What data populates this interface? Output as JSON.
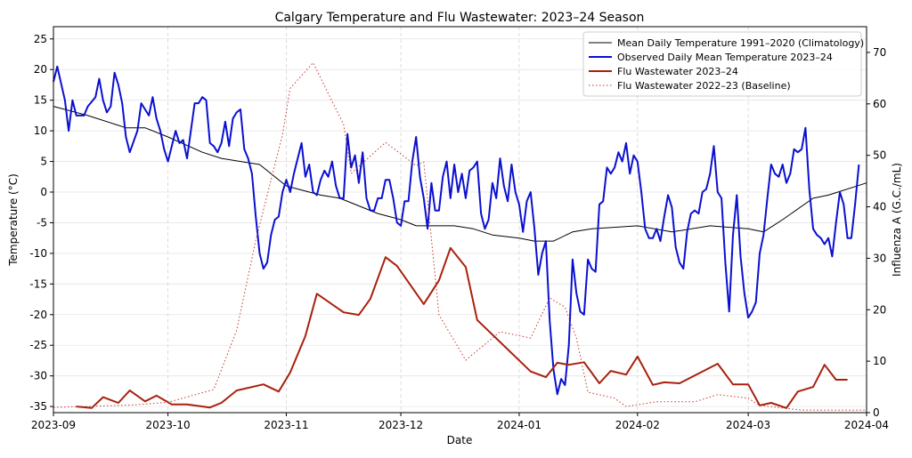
{
  "chart_data": {
    "type": "line",
    "title": "Calgary Temperature and Flu Wastewater: 2023–24 Season",
    "x_label": "Date",
    "y_label": "Temperature (°C)",
    "y2_label": "Influenza A (G.C./mL)",
    "xlim": [
      "2023-09-01",
      "2024-04-01"
    ],
    "xticks": [
      {
        "value": "2023-09-01",
        "label": "2023-09"
      },
      {
        "value": "2023-10-01",
        "label": "2023-10"
      },
      {
        "value": "2023-11-01",
        "label": "2023-11"
      },
      {
        "value": "2023-12-01",
        "label": "2023-12"
      },
      {
        "value": "2024-01-01",
        "label": "2024-01"
      },
      {
        "value": "2024-02-01",
        "label": "2024-02"
      },
      {
        "value": "2024-03-01",
        "label": "2024-03"
      },
      {
        "value": "2024-04-01",
        "label": "2024-04"
      }
    ],
    "ylim": [
      -36,
      27
    ],
    "yticks": [
      -35,
      -30,
      -25,
      -20,
      -15,
      -10,
      -5,
      0,
      5,
      10,
      15,
      20,
      25
    ],
    "y2lim": [
      0,
      75
    ],
    "y2ticks": [
      0,
      10,
      20,
      30,
      40,
      50,
      60,
      70
    ],
    "grid": true,
    "legend": "upper right",
    "series": [
      {
        "name": "Mean Daily Temperature 1991–2020 (Climatology)",
        "color": "#000000",
        "width": 1,
        "dash": "solid",
        "axis": "y",
        "x": [
          "2023-09-01",
          "2023-09-10",
          "2023-09-20",
          "2023-09-25",
          "2023-10-01",
          "2023-10-10",
          "2023-10-15",
          "2023-10-25",
          "2023-11-01",
          "2023-11-10",
          "2023-11-15",
          "2023-11-25",
          "2023-12-01",
          "2023-12-05",
          "2023-12-15",
          "2023-12-20",
          "2023-12-25",
          "2024-01-01",
          "2024-01-05",
          "2024-01-10",
          "2024-01-15",
          "2024-01-20",
          "2024-02-01",
          "2024-02-10",
          "2024-02-20",
          "2024-03-01",
          "2024-03-05",
          "2024-03-10",
          "2024-03-18",
          "2024-03-22",
          "2024-04-01"
        ],
        "values": [
          14,
          12.5,
          10.5,
          10.5,
          9,
          6.5,
          5.5,
          4.5,
          1,
          -0.5,
          -1,
          -3.5,
          -4.5,
          -5.5,
          -5.5,
          -6,
          -7,
          -7.5,
          -8,
          -8,
          -6.5,
          -6,
          -5.5,
          -6.5,
          -5.5,
          -6,
          -6.5,
          -4.5,
          -1,
          -0.5,
          1.5
        ]
      },
      {
        "name": "Observed Daily Mean Temperature 2023–24",
        "color": "#0a10d0",
        "width": 2,
        "dash": "solid",
        "axis": "y",
        "x": [
          "2023-09-01",
          "2023-09-02",
          "2023-09-04",
          "2023-09-05",
          "2023-09-06",
          "2023-09-07",
          "2023-09-09",
          "2023-09-10",
          "2023-09-12",
          "2023-09-13",
          "2023-09-14",
          "2023-09-15",
          "2023-09-16",
          "2023-09-17",
          "2023-09-18",
          "2023-09-19",
          "2023-09-20",
          "2023-09-21",
          "2023-09-23",
          "2023-09-24",
          "2023-09-25",
          "2023-09-26",
          "2023-09-27",
          "2023-09-28",
          "2023-09-29",
          "2023-09-30",
          "2023-10-01",
          "2023-10-02",
          "2023-10-03",
          "2023-10-04",
          "2023-10-05",
          "2023-10-06",
          "2023-10-07",
          "2023-10-08",
          "2023-10-09",
          "2023-10-10",
          "2023-10-11",
          "2023-10-12",
          "2023-10-13",
          "2023-10-14",
          "2023-10-15",
          "2023-10-16",
          "2023-10-17",
          "2023-10-18",
          "2023-10-19",
          "2023-10-20",
          "2023-10-21",
          "2023-10-22",
          "2023-10-23",
          "2023-10-24",
          "2023-10-25",
          "2023-10-26",
          "2023-10-27",
          "2023-10-28",
          "2023-10-29",
          "2023-10-30",
          "2023-10-31",
          "2023-11-01",
          "2023-11-02",
          "2023-11-03",
          "2023-11-04",
          "2023-11-05",
          "2023-11-06",
          "2023-11-07",
          "2023-11-08",
          "2023-11-09",
          "2023-11-10",
          "2023-11-11",
          "2023-11-12",
          "2023-11-13",
          "2023-11-14",
          "2023-11-15",
          "2023-11-16",
          "2023-11-17",
          "2023-11-18",
          "2023-11-19",
          "2023-11-20",
          "2023-11-21",
          "2023-11-22",
          "2023-11-23",
          "2023-11-24",
          "2023-11-25",
          "2023-11-26",
          "2023-11-27",
          "2023-11-28",
          "2023-11-29",
          "2023-11-30",
          "2023-12-01",
          "2023-12-02",
          "2023-12-03",
          "2023-12-04",
          "2023-12-05",
          "2023-12-06",
          "2023-12-07",
          "2023-12-08",
          "2023-12-09",
          "2023-12-10",
          "2023-12-11",
          "2023-12-12",
          "2023-12-13",
          "2023-12-14",
          "2023-12-15",
          "2023-12-16",
          "2023-12-17",
          "2023-12-18",
          "2023-12-19",
          "2023-12-20",
          "2023-12-21",
          "2023-12-22",
          "2023-12-23",
          "2023-12-24",
          "2023-12-25",
          "2023-12-26",
          "2023-12-27",
          "2023-12-28",
          "2023-12-29",
          "2023-12-30",
          "2023-12-31",
          "2024-01-01",
          "2024-01-02",
          "2024-01-03",
          "2024-01-04",
          "2024-01-05",
          "2024-01-06",
          "2024-01-07",
          "2024-01-08",
          "2024-01-09",
          "2024-01-10",
          "2024-01-11",
          "2024-01-12",
          "2024-01-13",
          "2024-01-14",
          "2024-01-15",
          "2024-01-16",
          "2024-01-17",
          "2024-01-18",
          "2024-01-19",
          "2024-01-20",
          "2024-01-21",
          "2024-01-22",
          "2024-01-23",
          "2024-01-24",
          "2024-01-25",
          "2024-01-26",
          "2024-01-27",
          "2024-01-28",
          "2024-01-29",
          "2024-01-30",
          "2024-01-31",
          "2024-02-01",
          "2024-02-02",
          "2024-02-03",
          "2024-02-04",
          "2024-02-05",
          "2024-02-06",
          "2024-02-07",
          "2024-02-08",
          "2024-02-09",
          "2024-02-10",
          "2024-02-11",
          "2024-02-12",
          "2024-02-13",
          "2024-02-14",
          "2024-02-15",
          "2024-02-16",
          "2024-02-17",
          "2024-02-18",
          "2024-02-19",
          "2024-02-20",
          "2024-02-21",
          "2024-02-22",
          "2024-02-23",
          "2024-02-24",
          "2024-02-25",
          "2024-02-26",
          "2024-02-27",
          "2024-02-28",
          "2024-02-29",
          "2024-03-01",
          "2024-03-02",
          "2024-03-03",
          "2024-03-04",
          "2024-03-05",
          "2024-03-06",
          "2024-03-07",
          "2024-03-08",
          "2024-03-09",
          "2024-03-10",
          "2024-03-11",
          "2024-03-12",
          "2024-03-13",
          "2024-03-14",
          "2024-03-15",
          "2024-03-16",
          "2024-03-17",
          "2024-03-18",
          "2024-03-19",
          "2024-03-20",
          "2024-03-21",
          "2024-03-22",
          "2024-03-23",
          "2024-03-24",
          "2024-03-25",
          "2024-03-26",
          "2024-03-27",
          "2024-03-28",
          "2024-03-29",
          "2024-03-30"
        ],
        "values": [
          18,
          20.5,
          15,
          10,
          15,
          12.5,
          12.5,
          14,
          15.5,
          18.5,
          15,
          13,
          14,
          19.5,
          17.5,
          14.5,
          9,
          6.5,
          10,
          14.5,
          13.5,
          12.5,
          15.5,
          12,
          10,
          7,
          5,
          7.5,
          10,
          8,
          8.5,
          5.5,
          10,
          14.5,
          14.5,
          15.5,
          15,
          8,
          7.5,
          6.5,
          8,
          11.5,
          7.5,
          12,
          13,
          13.5,
          7,
          5.5,
          3,
          -4,
          -10,
          -12.5,
          -11.5,
          -7,
          -4.5,
          -4,
          0,
          2,
          0,
          3,
          5.5,
          8,
          2.5,
          4.5,
          0,
          -0.5,
          2,
          3.5,
          2.5,
          5,
          1,
          -1,
          -1,
          9.5,
          4,
          6,
          1.5,
          6.5,
          -1,
          -3,
          -3,
          -1,
          -1,
          2,
          2,
          -1,
          -5,
          -5.5,
          -1.5,
          -1.5,
          5,
          9,
          2.5,
          -1,
          -6,
          1.5,
          -3,
          -3,
          2.5,
          5,
          -1,
          4.5,
          0,
          3,
          -1,
          3.5,
          4,
          5,
          -3.5,
          -6,
          -4.5,
          1.5,
          -1,
          5.5,
          1,
          -1.5,
          4.5,
          0,
          -2,
          -6.5,
          -1.5,
          0,
          -6,
          -13.5,
          -10,
          -8,
          -21,
          -29,
          -33,
          -30.5,
          -31.5,
          -25,
          -11,
          -16.5,
          -19.5,
          -20,
          -11,
          -12.5,
          -13,
          -2,
          -1.5,
          4,
          3,
          4,
          6.5,
          5,
          8,
          3,
          6,
          5,
          0,
          -6,
          -7.5,
          -7.5,
          -6,
          -8,
          -4,
          -0.5,
          -2.5,
          -9,
          -11.5,
          -12.5,
          -6.5,
          -3.5,
          -3,
          -3.5,
          0,
          0.5,
          3,
          7.5,
          0,
          -1,
          -11.5,
          -19.5,
          -7,
          -0.5,
          -10.5,
          -16.5,
          -20.5,
          -19.5,
          -18,
          -10,
          -7,
          -1,
          4.5,
          3,
          2.5,
          4.5,
          1.5,
          3,
          7,
          6.5,
          7,
          10.5,
          0.5,
          -6,
          -7,
          -7.5,
          -8.5,
          -7.5,
          -10.5,
          -5,
          0,
          -2,
          -7.5,
          -7.5,
          -2,
          4.5
        ]
      },
      {
        "name": "Flu Wastewater 2023–24",
        "color": "#a8200d",
        "width": 2,
        "dash": "solid",
        "axis": "y2",
        "x": [
          "2023-09-07",
          "2023-09-11",
          "2023-09-14",
          "2023-09-18",
          "2023-09-21",
          "2023-09-25",
          "2023-09-28",
          "2023-10-02",
          "2023-10-06",
          "2023-10-12",
          "2023-10-15",
          "2023-10-19",
          "2023-10-26",
          "2023-10-30",
          "2023-11-02",
          "2023-11-06",
          "2023-11-09",
          "2023-11-16",
          "2023-11-20",
          "2023-11-23",
          "2023-11-27",
          "2023-11-30",
          "2023-12-07",
          "2023-12-11",
          "2023-12-14",
          "2023-12-18",
          "2023-12-21",
          "2024-01-04",
          "2024-01-08",
          "2024-01-11",
          "2024-01-14",
          "2024-01-18",
          "2024-01-22",
          "2024-01-25",
          "2024-01-29",
          "2024-02-01",
          "2024-02-05",
          "2024-02-08",
          "2024-02-12",
          "2024-02-22",
          "2024-02-26",
          "2024-03-01",
          "2024-03-04",
          "2024-03-07",
          "2024-03-11",
          "2024-03-14",
          "2024-03-18",
          "2024-03-21",
          "2024-03-24",
          "2024-03-27"
        ],
        "values": [
          1.2,
          0.9,
          3,
          1.9,
          4.3,
          2.2,
          3.3,
          1.6,
          1.6,
          1,
          1.9,
          4.3,
          5.5,
          4.1,
          7.8,
          14.9,
          23.1,
          19.5,
          19,
          22.1,
          30.2,
          28.5,
          21.1,
          25.7,
          32,
          28.3,
          18,
          8,
          6.9,
          9.7,
          9.3,
          9.8,
          5.7,
          8.1,
          7.4,
          10.9,
          5.4,
          5.9,
          5.7,
          9.5,
          5.5,
          5.5,
          1.4,
          1.9,
          0.9,
          4.1,
          5,
          9.3,
          6.4,
          6.4
        ]
      },
      {
        "name": "Flu Wastewater 2022–23 (Baseline)",
        "color": "#c0392b",
        "width": 1,
        "dash": "dotted",
        "axis": "y2",
        "x": [
          "2023-09-01",
          "2023-09-22",
          "2023-10-01",
          "2023-10-13",
          "2023-10-19",
          "2023-10-24",
          "2023-10-31",
          "2023-11-02",
          "2023-11-08",
          "2023-11-16",
          "2023-11-18",
          "2023-11-27",
          "2023-12-05",
          "2023-12-07",
          "2023-12-11",
          "2023-12-18",
          "2023-12-27",
          "2024-01-04",
          "2024-01-09",
          "2024-01-13",
          "2024-01-16",
          "2024-01-19",
          "2024-01-26",
          "2024-01-29",
          "2024-02-06",
          "2024-02-16",
          "2024-02-22",
          "2024-03-01",
          "2024-03-04",
          "2024-03-15",
          "2024-04-01"
        ],
        "values": [
          1,
          1.5,
          2,
          4.5,
          16,
          33.5,
          54,
          63,
          68,
          56,
          46.5,
          52.5,
          48,
          48.7,
          19,
          10.2,
          15.7,
          14.5,
          22.3,
          20.5,
          14.5,
          4,
          2.8,
          1.2,
          2.1,
          2.1,
          3.5,
          2.8,
          1.4,
          0.5,
          0.5
        ]
      }
    ]
  }
}
